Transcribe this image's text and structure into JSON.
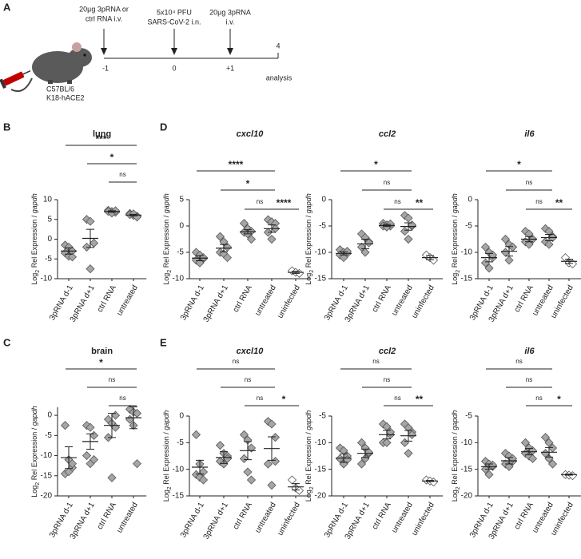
{
  "panel_labels": [
    "A",
    "B",
    "C",
    "D",
    "E"
  ],
  "timeline": {
    "events": [
      {
        "lines": [
          "20µg 3pRNA or",
          "ctrl RNA i.v."
        ],
        "day": "-1"
      },
      {
        "lines": [
          "5x10⁴ PFU",
          "SARS-CoV-2 i.n."
        ],
        "day": "0"
      },
      {
        "lines": [
          "20µg 3pRNA",
          "i.v."
        ],
        "day": "+1"
      }
    ],
    "end_day": "4",
    "end_label": "analysis",
    "mouse_label": [
      "C57BL/6",
      "K18-hACE2"
    ]
  },
  "chart_data": [
    {
      "type": "dot",
      "title": "lung",
      "title_italic": false,
      "ylabel": {
        "main": "Log",
        "sub": "2",
        "text": " Rel Expression / ",
        "gene": "gapdh"
      },
      "categories": [
        "3pRNA d-1",
        "3pRNA d+1",
        "ctrl RNA",
        "untreated"
      ],
      "point_colors": [
        "#a6a6a6",
        "#a6a6a6",
        "#a6a6a6",
        "#a6a6a6"
      ],
      "points": [
        [
          -1.5,
          -2,
          -3,
          -3.5,
          -4.3,
          -4.5
        ],
        [
          5,
          4.5,
          -1,
          -2,
          -7.5
        ],
        [
          7.3,
          7,
          6.8,
          7,
          6.6,
          7.2
        ],
        [
          6.5,
          6,
          5.8,
          6.2,
          6.4,
          5.6
        ]
      ],
      "means": [
        -3,
        0.2,
        7,
        6.1
      ],
      "sem": [
        0.8,
        2.3,
        0.2,
        0.2
      ],
      "ylim": [
        -10,
        10
      ],
      "yticks": [
        -10,
        -5,
        0,
        5,
        10
      ],
      "brackets": [
        {
          "pair": [
            0,
            3
          ],
          "label": "***"
        },
        {
          "pair": [
            1,
            3
          ],
          "label": "*"
        },
        {
          "pair": [
            2,
            3
          ],
          "label": "ns"
        }
      ]
    },
    {
      "type": "dot",
      "title": "brain",
      "title_italic": false,
      "ylabel": {
        "main": "Log",
        "sub": "2",
        "text": " Rel Expression / ",
        "gene": "gapdh"
      },
      "categories": [
        "3pRNA d-1",
        "3pRNA d+1",
        "ctrl RNA",
        "untreated"
      ],
      "point_colors": [
        "#a6a6a6",
        "#a6a6a6",
        "#a6a6a6",
        "#a6a6a6"
      ],
      "points": [
        [
          -2.5,
          -11,
          -13,
          -14.5,
          -14,
          -12
        ],
        [
          -2.5,
          -3,
          -5,
          -10,
          -12,
          -11
        ],
        [
          -1,
          -2,
          0,
          -5.5,
          -15.5,
          -3
        ],
        [
          1.5,
          0.8,
          0.5,
          -1,
          -2.5,
          -12
        ]
      ],
      "means": [
        -10.5,
        -6.5,
        -2.5,
        -0.6
      ],
      "sem": [
        2.7,
        1.9,
        3,
        2.7
      ],
      "ylim": [
        -20,
        2
      ],
      "yticks": [
        -20,
        -15,
        -10,
        -5,
        0
      ],
      "brackets": [
        {
          "pair": [
            0,
            3
          ],
          "label": "*"
        },
        {
          "pair": [
            1,
            3
          ],
          "label": "ns"
        },
        {
          "pair": [
            2,
            3
          ],
          "label": "ns"
        }
      ]
    },
    {
      "type": "dot",
      "title": "cxcl10",
      "title_italic": true,
      "ylabel": {
        "main": "Log",
        "sub": "2",
        "text": " Rel Expression / ",
        "gene": "gapdh"
      },
      "categories": [
        "3pRNA d-1",
        "3pRNA d+1",
        "ctrl RNA",
        "untreated",
        "uninfected"
      ],
      "point_colors": [
        "#a6a6a6",
        "#a6a6a6",
        "#a6a6a6",
        "#a6a6a6",
        "#ffffff"
      ],
      "points": [
        [
          -5,
          -5.5,
          -6.2,
          -6.5,
          -7,
          -6
        ],
        [
          -2,
          -3,
          -4,
          -5,
          -5.3,
          -6
        ],
        [
          0.5,
          -0.5,
          -1,
          -1.2,
          -1.5,
          -2.5
        ],
        [
          1.2,
          0.8,
          0.5,
          -1.2,
          -2.5,
          -0.5
        ],
        [
          -8.5,
          -8.8,
          -9
        ]
      ],
      "means": [
        -6.1,
        -4.2,
        -1.1,
        -0.5,
        -8.8
      ],
      "sem": [
        0.5,
        0.7,
        0.4,
        0.7,
        0.2
      ],
      "ylim": [
        -10,
        5
      ],
      "yticks": [
        -10,
        -5,
        0,
        5
      ],
      "brackets": [
        {
          "pair": [
            0,
            3
          ],
          "label": "****"
        },
        {
          "pair": [
            1,
            3
          ],
          "label": "*"
        },
        {
          "pair": [
            2,
            3
          ],
          "label": "ns"
        },
        {
          "pair": [
            3,
            4
          ],
          "label": "****"
        }
      ]
    },
    {
      "type": "dot",
      "title": "ccl2",
      "title_italic": true,
      "ylabel": {
        "main": "Log",
        "sub": "2",
        "text": " Rel Expression / ",
        "gene": "gapdh"
      },
      "categories": [
        "3pRNA d-1",
        "3pRNA d+1",
        "ctrl RNA",
        "untreated",
        "uninfected"
      ],
      "point_colors": [
        "#a6a6a6",
        "#a6a6a6",
        "#a6a6a6",
        "#a6a6a6",
        "#ffffff"
      ],
      "points": [
        [
          -9.5,
          -10,
          -10.2,
          -10.5,
          -11,
          -9.8
        ],
        [
          -6.5,
          -7.2,
          -8,
          -9,
          -10,
          -8.2
        ],
        [
          -4.5,
          -4.8,
          -5,
          -5,
          -5.2,
          -4.6
        ],
        [
          -3,
          -3.5,
          -5,
          -6,
          -7.5,
          -4.8
        ],
        [
          -10.5,
          -11,
          -11.5
        ]
      ],
      "means": [
        -10.2,
        -8.4,
        -4.9,
        -5.1,
        -11
      ],
      "sem": [
        0.3,
        0.9,
        0.2,
        0.7,
        0.4
      ],
      "ylim": [
        -15,
        0
      ],
      "yticks": [
        -15,
        -10,
        -5,
        0
      ],
      "brackets": [
        {
          "pair": [
            0,
            3
          ],
          "label": "*"
        },
        {
          "pair": [
            1,
            3
          ],
          "label": "ns"
        },
        {
          "pair": [
            2,
            3
          ],
          "label": "ns"
        },
        {
          "pair": [
            3,
            4
          ],
          "label": "**"
        }
      ]
    },
    {
      "type": "dot",
      "title": "il6",
      "title_italic": true,
      "ylabel": {
        "main": "Log",
        "sub": "2",
        "text": " Rel Expression / ",
        "gene": "gapdh"
      },
      "categories": [
        "3pRNA d-1",
        "3pRNA d+1",
        "ctrl RNA",
        "untreated",
        "uninfected"
      ],
      "point_colors": [
        "#a6a6a6",
        "#a6a6a6",
        "#a6a6a6",
        "#a6a6a6",
        "#ffffff"
      ],
      "points": [
        [
          -9,
          -10,
          -11,
          -12,
          -13,
          -10.5
        ],
        [
          -7.5,
          -8.5,
          -9,
          -10,
          -11.5,
          -9
        ],
        [
          -6,
          -6.5,
          -7.5,
          -8,
          -8.5,
          -7.5
        ],
        [
          -5.5,
          -6,
          -7,
          -8,
          -8.5,
          -7.2
        ],
        [
          -11,
          -12,
          -12.2
        ]
      ],
      "means": [
        -11,
        -9.8,
        -7.5,
        -7.2,
        -11.7
      ],
      "sem": [
        0.8,
        0.9,
        0.5,
        0.6,
        0.4
      ],
      "ylim": [
        -15,
        0
      ],
      "yticks": [
        -15,
        -10,
        -5,
        0
      ],
      "brackets": [
        {
          "pair": [
            0,
            3
          ],
          "label": "*"
        },
        {
          "pair": [
            1,
            3
          ],
          "label": "ns"
        },
        {
          "pair": [
            2,
            3
          ],
          "label": "ns"
        },
        {
          "pair": [
            3,
            4
          ],
          "label": "**"
        }
      ]
    },
    {
      "type": "dot",
      "title": "cxcl10",
      "title_italic": true,
      "ylabel": {
        "main": "Log",
        "sub": "2",
        "text": " Rel Expression / ",
        "gene": "gapdh"
      },
      "categories": [
        "3pRNA d-1",
        "3pRNA d+1",
        "ctrl RNA",
        "untreated",
        "uninfected"
      ],
      "point_colors": [
        "#a6a6a6",
        "#a6a6a6",
        "#a6a6a6",
        "#a6a6a6",
        "#ffffff"
      ],
      "points": [
        [
          -3.5,
          -9,
          -10.5,
          -11,
          -11.5,
          -12
        ],
        [
          -5.5,
          -7,
          -7.5,
          -8.5,
          -9,
          -8
        ],
        [
          -3.5,
          -4.5,
          -6,
          -8,
          -10.5,
          -12
        ],
        [
          -1,
          -1.5,
          -4,
          -9,
          -13,
          -8.5
        ],
        [
          -12,
          -13.5,
          -14
        ]
      ],
      "means": [
        -9.6,
        -7.8,
        -6.5,
        -6.1,
        -13.3
      ],
      "sem": [
        1.3,
        1.1,
        1.7,
        2.2,
        0.6
      ],
      "ylim": [
        -15,
        0
      ],
      "yticks": [
        -15,
        -10,
        -5,
        0
      ],
      "brackets": [
        {
          "pair": [
            0,
            3
          ],
          "label": "ns"
        },
        {
          "pair": [
            1,
            3
          ],
          "label": "ns"
        },
        {
          "pair": [
            2,
            3
          ],
          "label": "ns"
        },
        {
          "pair": [
            3,
            4
          ],
          "label": "*"
        }
      ]
    },
    {
      "type": "dot",
      "title": "ccl2",
      "title_italic": true,
      "ylabel": {
        "main": "Log",
        "sub": "2",
        "text": " Rel Expression / ",
        "gene": "gapdh"
      },
      "categories": [
        "3pRNA d-1",
        "3pRNA d+1",
        "ctrl RNA",
        "untreated",
        "uninfected"
      ],
      "point_colors": [
        "#a6a6a6",
        "#a6a6a6",
        "#a6a6a6",
        "#a6a6a6",
        "#ffffff"
      ],
      "points": [
        [
          -11,
          -11.5,
          -12.5,
          -13,
          -14,
          -13.2
        ],
        [
          -10,
          -11,
          -12,
          -14,
          -13,
          -11.8
        ],
        [
          -6.5,
          -7,
          -8.5,
          -10,
          -10,
          -8
        ],
        [
          -6.5,
          -7.2,
          -8,
          -10,
          -12,
          -8.5
        ],
        [
          -17,
          -17.2,
          -17.4
        ]
      ],
      "means": [
        -12.9,
        -12,
        -8.5,
        -8.7,
        -17.2
      ],
      "sem": [
        0.8,
        0.8,
        0.8,
        1,
        0.1
      ],
      "ylim": [
        -20,
        -5
      ],
      "yticks": [
        -20,
        -15,
        -10,
        -5
      ],
      "brackets": [
        {
          "pair": [
            0,
            3
          ],
          "label": "ns"
        },
        {
          "pair": [
            1,
            3
          ],
          "label": "ns"
        },
        {
          "pair": [
            2,
            3
          ],
          "label": "ns"
        },
        {
          "pair": [
            3,
            4
          ],
          "label": "**"
        }
      ]
    },
    {
      "type": "dot",
      "title": "il6",
      "title_italic": true,
      "ylabel": {
        "main": "Log",
        "sub": "2",
        "text": " Rel Expression / ",
        "gene": "gapdh"
      },
      "categories": [
        "3pRNA d-1",
        "3pRNA d+1",
        "ctrl RNA",
        "untreated",
        "uninfected"
      ],
      "point_colors": [
        "#a6a6a6",
        "#a6a6a6",
        "#a6a6a6",
        "#a6a6a6",
        "#ffffff"
      ],
      "points": [
        [
          -13.5,
          -14,
          -14.5,
          -15,
          -16,
          -14.2
        ],
        [
          -12,
          -12.5,
          -13.5,
          -14,
          -14.5,
          -13
        ],
        [
          -10,
          -11,
          -11.5,
          -12,
          -12.5,
          -13
        ],
        [
          -9,
          -10,
          -11,
          -12,
          -13,
          -14
        ],
        [
          -16,
          -16.1,
          -16.2
        ]
      ],
      "means": [
        -14.5,
        -13.4,
        -11.7,
        -11.8,
        -16
      ],
      "sem": [
        0.5,
        0.6,
        0.6,
        0.9,
        0.1
      ],
      "ylim": [
        -20,
        -5
      ],
      "yticks": [
        -20,
        -15,
        -10,
        -5
      ],
      "brackets": [
        {
          "pair": [
            0,
            3
          ],
          "label": "ns"
        },
        {
          "pair": [
            1,
            3
          ],
          "label": "ns"
        },
        {
          "pair": [
            2,
            3
          ],
          "label": "ns"
        },
        {
          "pair": [
            3,
            4
          ],
          "label": "*"
        }
      ]
    }
  ]
}
